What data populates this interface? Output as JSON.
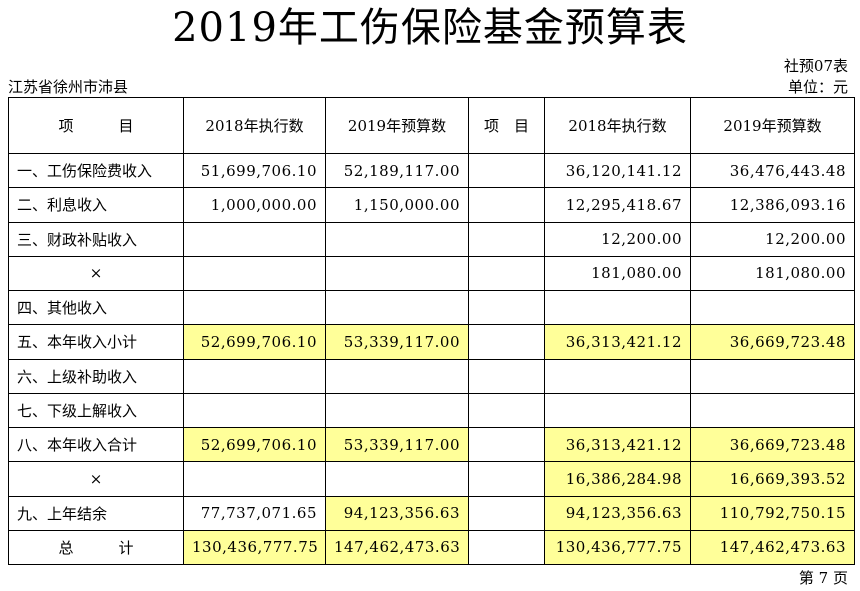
{
  "title": "2019年工伤保险基金预算表",
  "form_code": "社预07表",
  "region": "江苏省徐州市沛县",
  "unit": "单位：元",
  "headers": [
    "项　　　目",
    "2018年执行数",
    "2019年预算数",
    "项　目",
    "2018年执行数",
    "2019年预算数"
  ],
  "rows": [
    {
      "item": "一、工伤保险费收入",
      "a": "51,699,706.10",
      "b": "52,189,117.00",
      "item2": "",
      "c": "36,120,141.12",
      "d": "36,476,443.48"
    },
    {
      "item": "二、利息收入",
      "a": "1,000,000.00",
      "b": "1,150,000.00",
      "item2": "",
      "c": "12,295,418.67",
      "d": "12,386,093.16"
    },
    {
      "item": "三、财政补贴收入",
      "a": "",
      "b": "",
      "item2": "",
      "c": "12,200.00",
      "d": "12,200.00"
    },
    {
      "item": "×",
      "a": "",
      "b": "",
      "item2": "",
      "c": "181,080.00",
      "d": "181,080.00"
    },
    {
      "item": "四、其他收入",
      "a": "",
      "b": "",
      "item2": "",
      "c": "",
      "d": ""
    },
    {
      "item": "五、本年收入小计",
      "a": "52,699,706.10",
      "b": "53,339,117.00",
      "item2": "",
      "c": "36,313,421.12",
      "d": "36,669,723.48"
    },
    {
      "item": "六、上级补助收入",
      "a": "",
      "b": "",
      "item2": "",
      "c": "",
      "d": ""
    },
    {
      "item": "七、下级上解收入",
      "a": "",
      "b": "",
      "item2": "",
      "c": "",
      "d": ""
    },
    {
      "item": "八、本年收入合计",
      "a": "52,699,706.10",
      "b": "53,339,117.00",
      "item2": "",
      "c": "36,313,421.12",
      "d": "36,669,723.48"
    },
    {
      "item": "×",
      "a": "",
      "b": "",
      "item2": "",
      "c": "16,386,284.98",
      "d": "16,669,393.52"
    },
    {
      "item": "九、上年结余",
      "a": "77,737,071.65",
      "b": "94,123,356.63",
      "item2": "",
      "c": "94,123,356.63",
      "d": "110,792,750.15"
    },
    {
      "item": "总　　　计",
      "a": "130,436,777.75",
      "b": "147,462,473.63",
      "item2": "",
      "c": "130,436,777.75",
      "d": "147,462,473.63"
    }
  ],
  "page_label": "第 7 页",
  "highlight_color": "#ffff99"
}
